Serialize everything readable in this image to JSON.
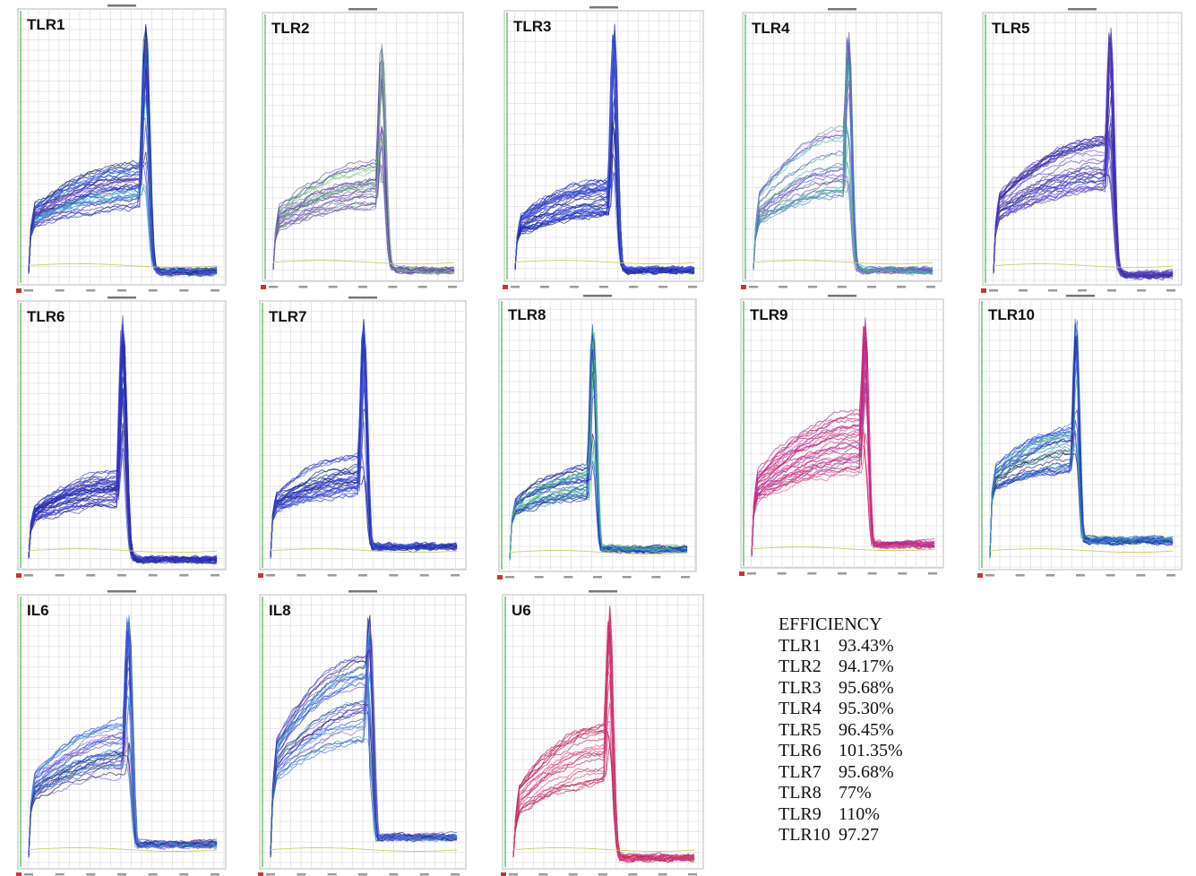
{
  "chart_data": [
    {
      "type": "line",
      "title": "TLR1",
      "peak_x": 0.62,
      "peak_h": 0.97,
      "width": 0.028,
      "base": 0.13,
      "shoulder": 0.22,
      "tail": 0.04,
      "n": 40,
      "palette": [
        "#3344dd",
        "#5533bb",
        "#2266cc",
        "#222266",
        "#33aacc",
        "#6655dd"
      ]
    },
    {
      "type": "line",
      "title": "TLR2",
      "peak_x": 0.6,
      "peak_h": 0.92,
      "width": 0.028,
      "base": 0.1,
      "shoulder": 0.26,
      "tail": 0.02,
      "n": 30,
      "palette": [
        "#7a55bb",
        "#55aa66",
        "#9977cc",
        "#666699",
        "#88cc88",
        "#5533aa"
      ]
    },
    {
      "type": "line",
      "title": "TLR3",
      "peak_x": 0.55,
      "peak_h": 0.97,
      "width": 0.026,
      "base": 0.1,
      "shoulder": 0.2,
      "tail": 0.02,
      "n": 40,
      "palette": [
        "#2233cc",
        "#3344dd",
        "#222266",
        "#4455ee",
        "#1a2a99",
        "#5566dd"
      ]
    },
    {
      "type": "line",
      "title": "TLR4",
      "peak_x": 0.53,
      "peak_h": 0.95,
      "width": 0.026,
      "base": 0.1,
      "shoulder": 0.34,
      "tail": 0.02,
      "n": 26,
      "palette": [
        "#6655cc",
        "#55bb99",
        "#7744bb",
        "#44aa88",
        "#8866dd",
        "#3399aa"
      ]
    },
    {
      "type": "line",
      "title": "TLR5",
      "peak_x": 0.65,
      "peak_h": 0.97,
      "width": 0.028,
      "base": 0.13,
      "shoulder": 0.3,
      "tail": 0.01,
      "n": 36,
      "palette": [
        "#4433cc",
        "#6633bb",
        "#2233aa",
        "#5544dd",
        "#7755cc",
        "#333388"
      ]
    },
    {
      "type": "line",
      "title": "TLR6",
      "peak_x": 0.5,
      "peak_h": 0.97,
      "width": 0.026,
      "base": 0.1,
      "shoulder": 0.18,
      "tail": 0.01,
      "n": 38,
      "palette": [
        "#2233cc",
        "#4433bb",
        "#222266",
        "#3344dd",
        "#5544cc",
        "#1a2a99"
      ]
    },
    {
      "type": "line",
      "title": "TLR7",
      "peak_x": 0.5,
      "peak_h": 0.97,
      "width": 0.026,
      "base": 0.14,
      "shoulder": 0.2,
      "tail": 0.14,
      "n": 34,
      "palette": [
        "#2233cc",
        "#3344dd",
        "#222266",
        "#4455ee",
        "#1a2a99",
        "#5566dd"
      ]
    },
    {
      "type": "line",
      "title": "TLR8",
      "peak_x": 0.47,
      "peak_h": 0.94,
      "width": 0.027,
      "base": 0.13,
      "shoulder": 0.18,
      "tail": 0.13,
      "n": 34,
      "palette": [
        "#2233cc",
        "#44bb77",
        "#3344dd",
        "#55cc88",
        "#222266",
        "#4466dd"
      ]
    },
    {
      "type": "line",
      "title": "TLR9",
      "peak_x": 0.62,
      "peak_h": 0.97,
      "width": 0.027,
      "base": 0.14,
      "shoulder": 0.32,
      "tail": 0.14,
      "n": 34,
      "palette": [
        "#cc2266",
        "#aa33aa",
        "#dd4488",
        "#bb2277",
        "#9944aa",
        "#ee5599"
      ]
    },
    {
      "type": "line",
      "title": "TLR10",
      "peak_x": 0.47,
      "peak_h": 0.97,
      "width": 0.026,
      "base": 0.22,
      "shoulder": 0.22,
      "tail": 0.2,
      "n": 34,
      "palette": [
        "#2233cc",
        "#339999",
        "#3344dd",
        "#44aaaa",
        "#222266",
        "#4466dd"
      ]
    },
    {
      "type": "line",
      "title": "IL6",
      "peak_x": 0.53,
      "peak_h": 0.96,
      "width": 0.028,
      "base": 0.15,
      "shoulder": 0.28,
      "tail": 0.15,
      "n": 34,
      "palette": [
        "#3344dd",
        "#6655cc",
        "#33aacc",
        "#222266",
        "#8866dd",
        "#4477ee"
      ]
    },
    {
      "type": "line",
      "title": "IL8",
      "peak_x": 0.53,
      "peak_h": 0.96,
      "width": 0.03,
      "base": 0.18,
      "shoulder": 0.45,
      "tail": 0.22,
      "n": 34,
      "palette": [
        "#3344dd",
        "#6655cc",
        "#33aacc",
        "#222266",
        "#8866dd",
        "#4477ee"
      ]
    },
    {
      "type": "line",
      "title": "U6",
      "peak_x": 0.53,
      "peak_h": 0.98,
      "width": 0.027,
      "base": 0.08,
      "shoulder": 0.32,
      "tail": 0.02,
      "n": 24,
      "palette": [
        "#cc2266",
        "#dd3377",
        "#bb2255",
        "#ee4488",
        "#aa3366",
        "#cc4477"
      ]
    }
  ],
  "efficiency": {
    "title": "EFFICIENCY",
    "rows": [
      {
        "name": "TLR1",
        "value": "93.43%"
      },
      {
        "name": "TLR2",
        "value": "94.17%"
      },
      {
        "name": "TLR3",
        "value": "95.68%"
      },
      {
        "name": "TLR4",
        "value": "95.30%"
      },
      {
        "name": "TLR5",
        "value": "96.45%"
      },
      {
        "name": "TLR6",
        "value": "101.35%"
      },
      {
        "name": "TLR7",
        "value": "95.68%"
      },
      {
        "name": "TLR8",
        "value": "77%"
      },
      {
        "name": "TLR9",
        "value": "110%"
      },
      {
        "name": "TLR10",
        "value": "97.27"
      }
    ]
  }
}
